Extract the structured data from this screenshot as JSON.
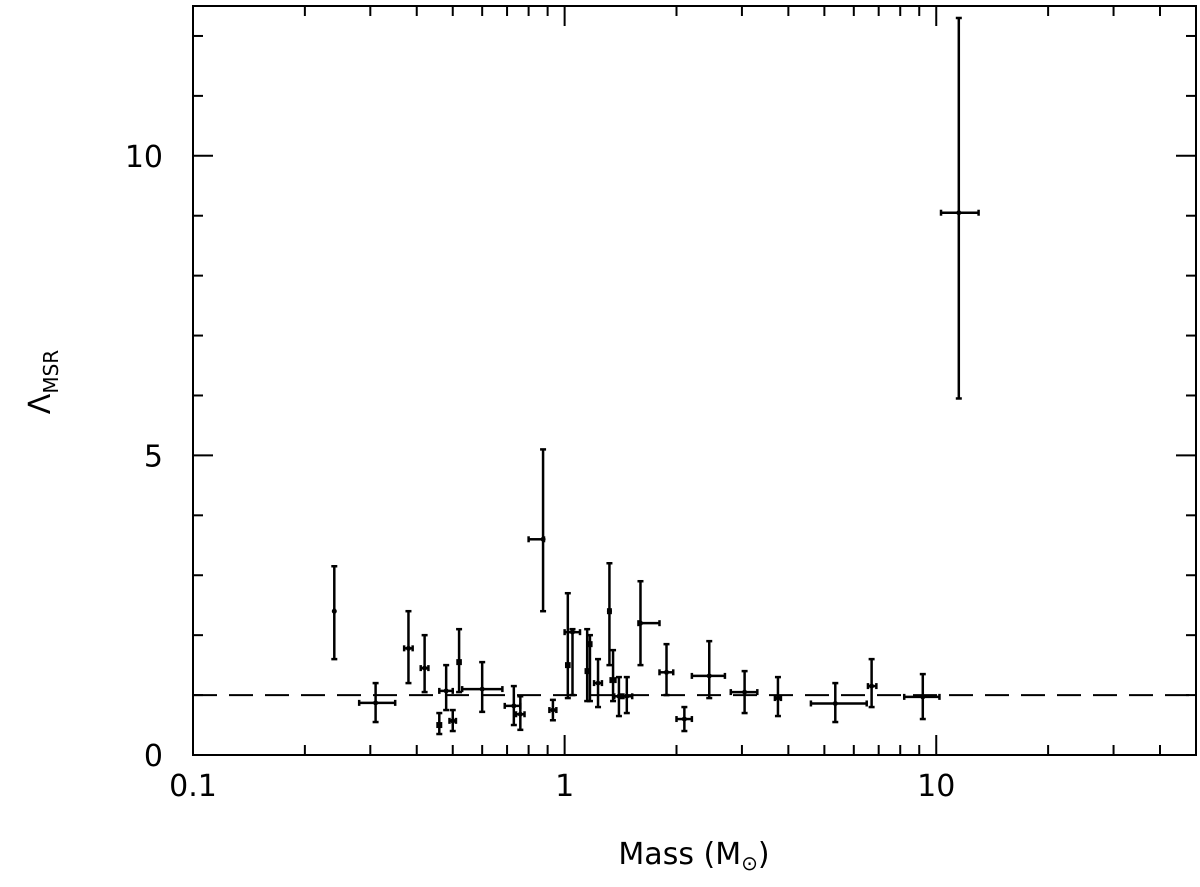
{
  "chart_data": {
    "type": "scatter",
    "title": "",
    "xlabel": "Mass (M",
    "xlabel_symbol": "⊙",
    "xlabel_close": ")",
    "ylabel": "Λ",
    "ylabel_sub": "MSR",
    "xscale": "log",
    "xlim": [
      0.1,
      50
    ],
    "ylim": [
      0,
      12.5
    ],
    "grid": false,
    "legend": "none",
    "x_ticks": [
      {
        "value": 0.1,
        "label": "0.1"
      },
      {
        "value": 1,
        "label": "1"
      },
      {
        "value": 10,
        "label": "10"
      }
    ],
    "y_ticks": [
      {
        "value": 0,
        "label": "0"
      },
      {
        "value": 5,
        "label": "5"
      },
      {
        "value": 10,
        "label": "10"
      }
    ],
    "reference_line": {
      "y": 1,
      "style": "dashed"
    },
    "series": [
      {
        "points": [
          {
            "x": 0.24,
            "y": 2.4,
            "x_lo": 0.24,
            "x_hi": 0.24,
            "y_lo": 1.6,
            "y_hi": 3.15
          },
          {
            "x": 0.31,
            "y": 0.87,
            "x_lo": 0.28,
            "x_hi": 0.35,
            "y_lo": 0.55,
            "y_hi": 1.2
          },
          {
            "x": 0.38,
            "y": 1.78,
            "x_lo": 0.37,
            "x_hi": 0.39,
            "y_lo": 1.2,
            "y_hi": 2.4
          },
          {
            "x": 0.42,
            "y": 1.45,
            "x_lo": 0.41,
            "x_hi": 0.43,
            "y_lo": 1.05,
            "y_hi": 2.0
          },
          {
            "x": 0.46,
            "y": 0.5,
            "x_lo": 0.455,
            "x_hi": 0.465,
            "y_lo": 0.35,
            "y_hi": 0.7
          },
          {
            "x": 0.48,
            "y": 1.07,
            "x_lo": 0.46,
            "x_hi": 0.5,
            "y_lo": 0.75,
            "y_hi": 1.5
          },
          {
            "x": 0.5,
            "y": 0.57,
            "x_lo": 0.49,
            "x_hi": 0.51,
            "y_lo": 0.4,
            "y_hi": 0.75
          },
          {
            "x": 0.52,
            "y": 1.55,
            "x_lo": 0.515,
            "x_hi": 0.525,
            "y_lo": 1.05,
            "y_hi": 2.1
          },
          {
            "x": 0.6,
            "y": 1.1,
            "x_lo": 0.53,
            "x_hi": 0.68,
            "y_lo": 0.72,
            "y_hi": 1.55
          },
          {
            "x": 0.73,
            "y": 0.82,
            "x_lo": 0.69,
            "x_hi": 0.76,
            "y_lo": 0.5,
            "y_hi": 1.15
          },
          {
            "x": 0.76,
            "y": 0.68,
            "x_lo": 0.74,
            "x_hi": 0.78,
            "y_lo": 0.42,
            "y_hi": 0.98
          },
          {
            "x": 0.875,
            "y": 3.6,
            "x_lo": 0.8,
            "x_hi": 0.88,
            "y_lo": 2.4,
            "y_hi": 5.1
          },
          {
            "x": 0.93,
            "y": 0.75,
            "x_lo": 0.91,
            "x_hi": 0.95,
            "y_lo": 0.58,
            "y_hi": 0.92
          },
          {
            "x": 1.02,
            "y": 1.5,
            "x_lo": 1.01,
            "x_hi": 1.03,
            "y_lo": 0.95,
            "y_hi": 2.7
          },
          {
            "x": 1.05,
            "y": 2.05,
            "x_lo": 1.0,
            "x_hi": 1.1,
            "y_lo": 1.0,
            "y_hi": 2.1
          },
          {
            "x": 1.15,
            "y": 1.4,
            "x_lo": 1.14,
            "x_hi": 1.16,
            "y_lo": 0.9,
            "y_hi": 2.1
          },
          {
            "x": 1.17,
            "y": 1.85,
            "x_lo": 1.16,
            "x_hi": 1.18,
            "y_lo": 0.9,
            "y_hi": 2.0
          },
          {
            "x": 1.23,
            "y": 1.2,
            "x_lo": 1.2,
            "x_hi": 1.26,
            "y_lo": 0.8,
            "y_hi": 1.6
          },
          {
            "x": 1.32,
            "y": 2.4,
            "x_lo": 1.31,
            "x_hi": 1.33,
            "y_lo": 1.5,
            "y_hi": 3.2
          },
          {
            "x": 1.35,
            "y": 1.25,
            "x_lo": 1.33,
            "x_hi": 1.37,
            "y_lo": 0.9,
            "y_hi": 1.75
          },
          {
            "x": 1.4,
            "y": 0.98,
            "x_lo": 1.36,
            "x_hi": 1.44,
            "y_lo": 0.65,
            "y_hi": 1.3
          },
          {
            "x": 1.47,
            "y": 0.98,
            "x_lo": 1.42,
            "x_hi": 1.52,
            "y_lo": 0.7,
            "y_hi": 1.3
          },
          {
            "x": 1.6,
            "y": 2.2,
            "x_lo": 1.58,
            "x_hi": 1.8,
            "y_lo": 1.5,
            "y_hi": 2.9
          },
          {
            "x": 1.88,
            "y": 1.38,
            "x_lo": 1.8,
            "x_hi": 1.96,
            "y_lo": 1.0,
            "y_hi": 1.85
          },
          {
            "x": 2.1,
            "y": 0.6,
            "x_lo": 2.0,
            "x_hi": 2.2,
            "y_lo": 0.4,
            "y_hi": 0.8
          },
          {
            "x": 2.45,
            "y": 1.32,
            "x_lo": 2.2,
            "x_hi": 2.7,
            "y_lo": 0.95,
            "y_hi": 1.9
          },
          {
            "x": 3.05,
            "y": 1.05,
            "x_lo": 2.8,
            "x_hi": 3.3,
            "y_lo": 0.7,
            "y_hi": 1.4
          },
          {
            "x": 3.75,
            "y": 0.95,
            "x_lo": 3.68,
            "x_hi": 3.82,
            "y_lo": 0.65,
            "y_hi": 1.3
          },
          {
            "x": 5.35,
            "y": 0.86,
            "x_lo": 4.6,
            "x_hi": 6.5,
            "y_lo": 0.55,
            "y_hi": 1.2
          },
          {
            "x": 6.7,
            "y": 1.15,
            "x_lo": 6.55,
            "x_hi": 6.9,
            "y_lo": 0.8,
            "y_hi": 1.6
          },
          {
            "x": 9.2,
            "y": 0.97,
            "x_lo": 8.2,
            "x_hi": 10.2,
            "y_lo": 0.6,
            "y_hi": 1.35
          },
          {
            "x": 11.5,
            "y": 9.05,
            "x_lo": 10.3,
            "x_hi": 13.0,
            "y_lo": 5.95,
            "y_hi": 12.3
          }
        ]
      }
    ]
  }
}
